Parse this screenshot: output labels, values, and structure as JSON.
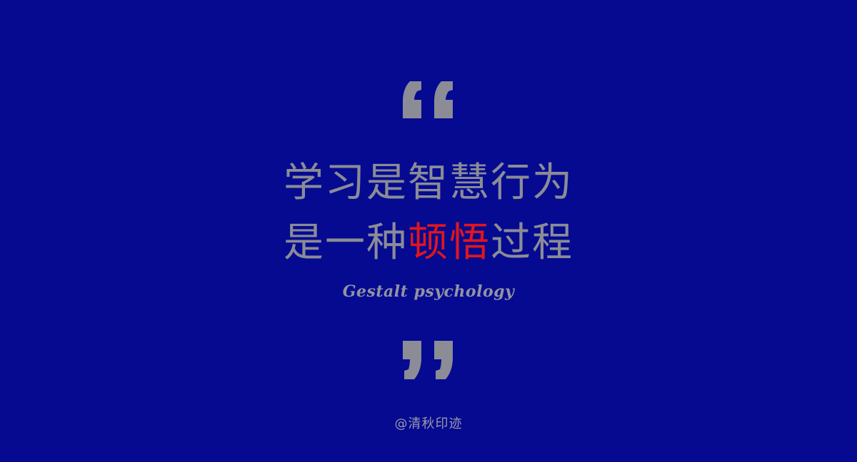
{
  "slide": {
    "background_color": "#050a91",
    "text_color": "#8b8c96",
    "accent_color": "#e0161d",
    "open_quote_icon": "open-quote-icon",
    "close_quote_icon": "close-quote-icon",
    "headline": {
      "line1": "学习是智慧行为",
      "line2_before": "是一种",
      "line2_highlight": "顿悟",
      "line2_after": "过程"
    },
    "subtitle": "Gestalt psychology",
    "credit": "@清秋印迹"
  }
}
